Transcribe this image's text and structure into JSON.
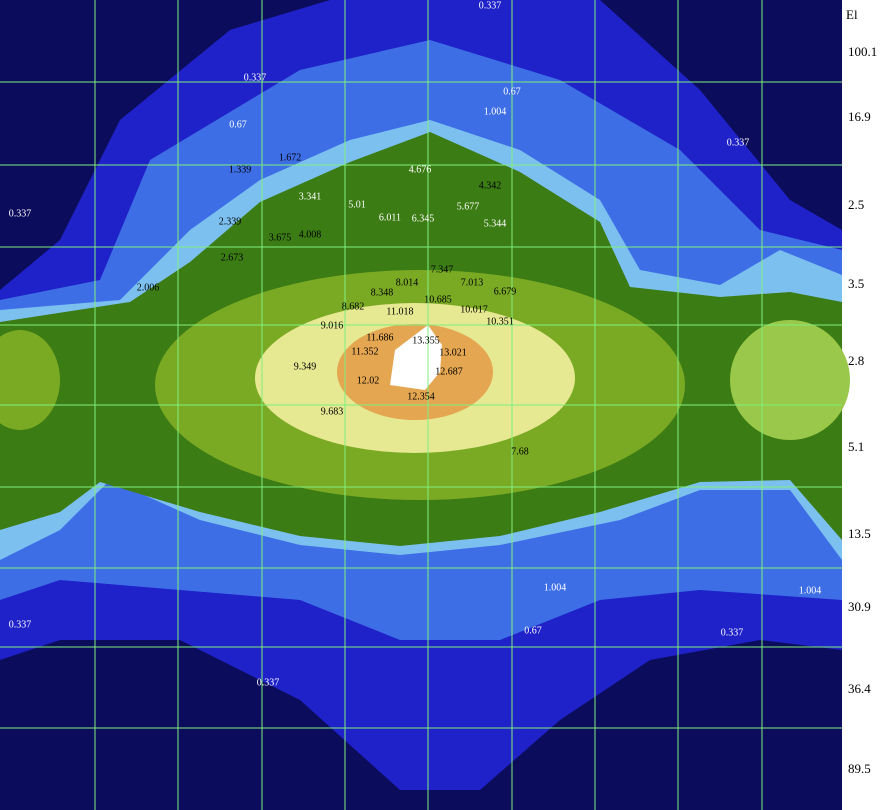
{
  "chart_data": {
    "type": "contour",
    "axis_title": "El",
    "row_labels": [
      "100.1",
      "16.9",
      "2.5",
      "3.5",
      "2.8",
      "5.1",
      "13.5",
      "30.9",
      "36.4",
      "89.5"
    ],
    "contour_labels": [
      "0.337",
      "0.337",
      "0.67",
      "0.67",
      "1.004",
      "1.672",
      "1.339",
      "2.006",
      "2.339",
      "2.673",
      "3.341",
      "3.675",
      "4.008",
      "4.342",
      "4.676",
      "5.01",
      "5.344",
      "5.677",
      "6.011",
      "6.345",
      "6.679",
      "7.013",
      "7.347",
      "7.68",
      "8.014",
      "8.348",
      "8.682",
      "9.016",
      "9.349",
      "9.683",
      "10.017",
      "10.351",
      "10.685",
      "11.018",
      "11.352",
      "11.686",
      "12.02",
      "12.354",
      "12.687",
      "13.021",
      "13.355",
      "0.337",
      "0.337",
      "0.337",
      "0.337",
      "0.67",
      "1.004",
      "1.004",
      "0.337"
    ]
  }
}
